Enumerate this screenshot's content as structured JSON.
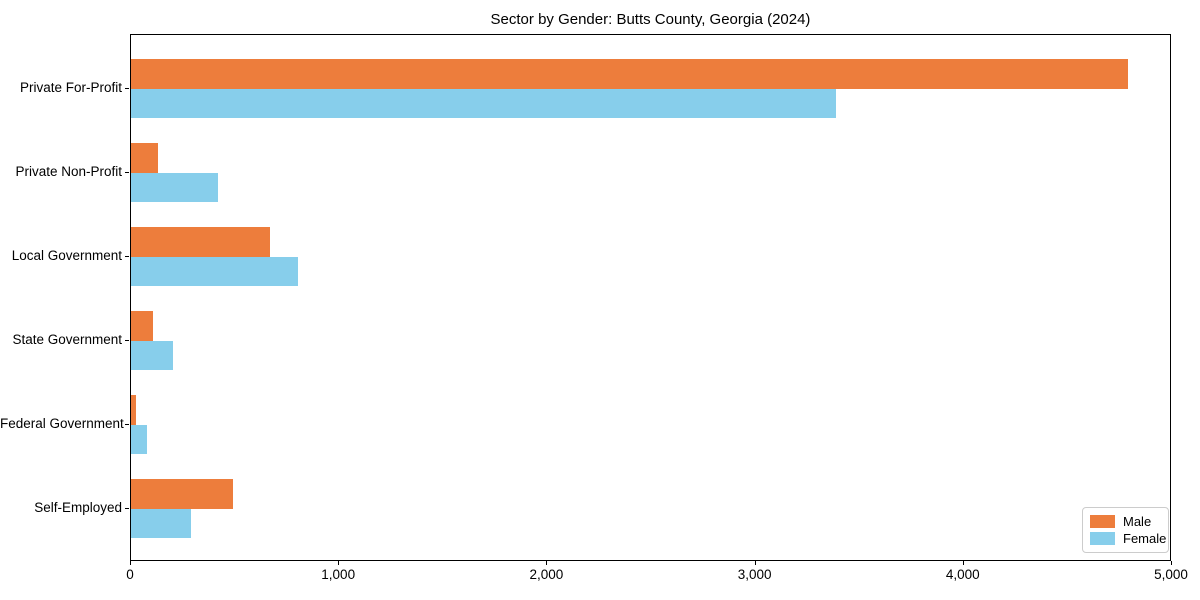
{
  "chart_data": {
    "type": "bar",
    "orientation": "horizontal",
    "title": "Sector by Gender: Butts County, Georgia (2024)",
    "categories": [
      "Private For-Profit",
      "Private Non-Profit",
      "Local Government",
      "State Government",
      "Federal Government",
      "Self-Employed"
    ],
    "series": [
      {
        "name": "Male",
        "color": "#ED7D3C",
        "values": [
          4790,
          130,
          670,
          105,
          25,
          490
        ]
      },
      {
        "name": "Female",
        "color": "#87CEEB",
        "values": [
          3385,
          420,
          800,
          200,
          75,
          290
        ]
      }
    ],
    "xlabel": "",
    "ylabel": "",
    "xlim": [
      0,
      5000
    ],
    "x_ticks": [
      0,
      1000,
      2000,
      3000,
      4000,
      5000
    ],
    "x_tick_labels": [
      "0",
      "1,000",
      "2,000",
      "3,000",
      "4,000",
      "5,000"
    ],
    "grid": false,
    "legend_position": "lower right",
    "colors": {
      "axis": "#000000",
      "background": "#ffffff",
      "legend_border": "#cccccc"
    }
  }
}
